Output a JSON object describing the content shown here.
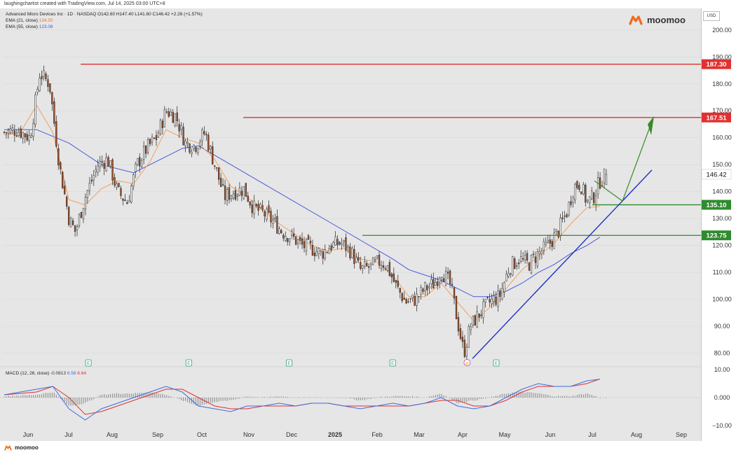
{
  "credit": "laughingchartist created with TradingView.com, Jul 14, 2025 03:00 UTC+8",
  "legend": {
    "title": "Advanced Micro Devices Inc · 1D · NASDAQ O142.60 H147.40 L141.60 C146.42 +2.26 (+1.57%)",
    "ema21": "EMA (21, close)",
    "ema21_value": "134.50",
    "ema55": "EMA (55, close)",
    "ema55_value": "123.06"
  },
  "macd_legend": {
    "label": "MACD (12, 26, close)",
    "v1": "-0.0813",
    "v2": "6.56",
    "v3": "6.64"
  },
  "brand": "moomoo",
  "currency": "USD",
  "colors": {
    "up": "#ffffff",
    "down": "#a0522d",
    "ema21": "#f0a060",
    "ema55": "#4a5ad8",
    "red_level": "#e03030",
    "green_level": "#2e8b2e",
    "trendline": "#2030c8",
    "arrow": "#3a8a2a",
    "macd_line": "#3b6de0",
    "signal_line": "#e03030",
    "hist": "#888888"
  },
  "chart_data": {
    "type": "candlestick",
    "title": "Advanced Micro Devices Inc · 1D · NASDAQ",
    "ohlc_last": {
      "open": 142.6,
      "high": 147.4,
      "low": 141.6,
      "close": 146.42,
      "change": "+2.26",
      "change_pct": "+1.57%"
    },
    "x_ticks": [
      "Jun",
      "Jul",
      "Aug",
      "Sep",
      "Oct",
      "Nov",
      "Dec",
      "2025",
      "Feb",
      "Mar",
      "Apr",
      "May",
      "Jun",
      "Jul",
      "Aug",
      "Sep"
    ],
    "y_ticks": [
      "200.00",
      "190.00",
      "180.00",
      "170.00",
      "160.00",
      "150.00",
      "140.00",
      "130.00",
      "120.00",
      "110.00",
      "100.00",
      "90.00",
      "80.00"
    ],
    "ylim": [
      76,
      208
    ],
    "close_path": [
      [
        0,
        162
      ],
      [
        4,
        163
      ],
      [
        8,
        160
      ],
      [
        11,
        184
      ],
      [
        14,
        180
      ],
      [
        17,
        150
      ],
      [
        20,
        130
      ],
      [
        22,
        125
      ],
      [
        25,
        138
      ],
      [
        29,
        150
      ],
      [
        32,
        152
      ],
      [
        35,
        140
      ],
      [
        38,
        136
      ],
      [
        41,
        150
      ],
      [
        44,
        156
      ],
      [
        47,
        160
      ],
      [
        50,
        170
      ],
      [
        53,
        168
      ],
      [
        56,
        158
      ],
      [
        59,
        157
      ],
      [
        62,
        162
      ],
      [
        65,
        150
      ],
      [
        68,
        138
      ],
      [
        71,
        140
      ],
      [
        74,
        141
      ],
      [
        77,
        134
      ],
      [
        80,
        132
      ],
      [
        83,
        129
      ],
      [
        86,
        125
      ],
      [
        89,
        123
      ],
      [
        92,
        120
      ],
      [
        95,
        119
      ],
      [
        98,
        117
      ],
      [
        101,
        120
      ],
      [
        104,
        121
      ],
      [
        107,
        118
      ],
      [
        110,
        111
      ],
      [
        113,
        112
      ],
      [
        116,
        114
      ],
      [
        118,
        113
      ],
      [
        121,
        105
      ],
      [
        124,
        99
      ],
      [
        127,
        100
      ],
      [
        130,
        104
      ],
      [
        133,
        106
      ],
      [
        135,
        111
      ],
      [
        138,
        105
      ],
      [
        140,
        92
      ],
      [
        142,
        80
      ],
      [
        144,
        90
      ],
      [
        147,
        95
      ],
      [
        150,
        99
      ],
      [
        153,
        101
      ],
      [
        156,
        112
      ],
      [
        159,
        115
      ],
      [
        162,
        113
      ],
      [
        165,
        117
      ],
      [
        168,
        120
      ],
      [
        171,
        125
      ],
      [
        174,
        133
      ],
      [
        176,
        142
      ],
      [
        178,
        143
      ],
      [
        180,
        136
      ],
      [
        182,
        138
      ],
      [
        184,
        144
      ],
      [
        186,
        146.42
      ]
    ],
    "bar_count": 290,
    "ema21": {
      "name": "EMA (21, close)",
      "values": [
        [
          0,
          161
        ],
        [
          5,
          162
        ],
        [
          10,
          172
        ],
        [
          15,
          162
        ],
        [
          20,
          137
        ],
        [
          25,
          135
        ],
        [
          30,
          141
        ],
        [
          35,
          144
        ],
        [
          40,
          143
        ],
        [
          45,
          151
        ],
        [
          50,
          163
        ],
        [
          55,
          160
        ],
        [
          60,
          158
        ],
        [
          65,
          152
        ],
        [
          70,
          142
        ],
        [
          75,
          138
        ],
        [
          80,
          133
        ],
        [
          85,
          128
        ],
        [
          90,
          124
        ],
        [
          95,
          120
        ],
        [
          100,
          118
        ],
        [
          105,
          119
        ],
        [
          110,
          115
        ],
        [
          115,
          114
        ],
        [
          120,
          109
        ],
        [
          125,
          101
        ],
        [
          130,
          101
        ],
        [
          135,
          106
        ],
        [
          140,
          99
        ],
        [
          145,
          92
        ],
        [
          150,
          97
        ],
        [
          155,
          104
        ],
        [
          160,
          111
        ],
        [
          165,
          116
        ],
        [
          170,
          121
        ],
        [
          175,
          128
        ],
        [
          180,
          134
        ],
        [
          184,
          134.5
        ]
      ]
    },
    "ema55": {
      "name": "EMA (55, close)",
      "values": [
        [
          0,
          163
        ],
        [
          10,
          163
        ],
        [
          20,
          158
        ],
        [
          30,
          150
        ],
        [
          40,
          147
        ],
        [
          50,
          153
        ],
        [
          55,
          156
        ],
        [
          60,
          157
        ],
        [
          70,
          150
        ],
        [
          80,
          143
        ],
        [
          90,
          136
        ],
        [
          100,
          129
        ],
        [
          110,
          122
        ],
        [
          120,
          115
        ],
        [
          125,
          111
        ],
        [
          130,
          109
        ],
        [
          135,
          107
        ],
        [
          140,
          104
        ],
        [
          145,
          101
        ],
        [
          150,
          101
        ],
        [
          155,
          103
        ],
        [
          160,
          106
        ],
        [
          165,
          110
        ],
        [
          170,
          113
        ],
        [
          175,
          117
        ],
        [
          180,
          120
        ],
        [
          184,
          123.06
        ]
      ]
    },
    "levels": [
      {
        "value": 187.3,
        "label": "187.30",
        "color": "red"
      },
      {
        "value": 167.51,
        "label": "167.51",
        "color": "red"
      },
      {
        "value": 135.1,
        "label": "135.10",
        "color": "green"
      },
      {
        "value": 123.75,
        "label": "123.75",
        "color": "green"
      }
    ],
    "current_price": "146.42",
    "macd": {
      "label": "MACD (12, 26, close)",
      "y_ticks": [
        "10.00",
        "0.000",
        "−10.00"
      ],
      "ylim": [
        -11,
        11
      ],
      "macd_line": [
        [
          0,
          1
        ],
        [
          10,
          3
        ],
        [
          15,
          4
        ],
        [
          20,
          -4
        ],
        [
          25,
          -8
        ],
        [
          30,
          -4
        ],
        [
          35,
          -2
        ],
        [
          40,
          0
        ],
        [
          45,
          2
        ],
        [
          50,
          4
        ],
        [
          55,
          2
        ],
        [
          60,
          -3
        ],
        [
          65,
          -4
        ],
        [
          70,
          -5
        ],
        [
          75,
          -3
        ],
        [
          80,
          -3
        ],
        [
          85,
          -2
        ],
        [
          90,
          -3
        ],
        [
          95,
          -2
        ],
        [
          100,
          -2
        ],
        [
          105,
          -3
        ],
        [
          110,
          -4
        ],
        [
          115,
          -3
        ],
        [
          120,
          -2
        ],
        [
          125,
          -3
        ],
        [
          130,
          -2
        ],
        [
          135,
          0
        ],
        [
          140,
          -3
        ],
        [
          145,
          -4
        ],
        [
          150,
          -3
        ],
        [
          155,
          0
        ],
        [
          160,
          3
        ],
        [
          165,
          5
        ],
        [
          170,
          4
        ],
        [
          175,
          4
        ],
        [
          180,
          6
        ],
        [
          184,
          6.56
        ]
      ],
      "signal_line": [
        [
          0,
          1
        ],
        [
          10,
          2
        ],
        [
          15,
          4
        ],
        [
          20,
          0
        ],
        [
          25,
          -6
        ],
        [
          30,
          -5
        ],
        [
          35,
          -3
        ],
        [
          40,
          -1
        ],
        [
          45,
          1
        ],
        [
          50,
          3
        ],
        [
          55,
          3
        ],
        [
          60,
          0
        ],
        [
          65,
          -3
        ],
        [
          70,
          -4
        ],
        [
          75,
          -4
        ],
        [
          80,
          -3
        ],
        [
          85,
          -3
        ],
        [
          90,
          -3
        ],
        [
          95,
          -2
        ],
        [
          100,
          -2
        ],
        [
          105,
          -3
        ],
        [
          110,
          -3
        ],
        [
          115,
          -3
        ],
        [
          120,
          -3
        ],
        [
          125,
          -3
        ],
        [
          130,
          -2
        ],
        [
          135,
          -1
        ],
        [
          140,
          -1
        ],
        [
          145,
          -3
        ],
        [
          150,
          -3
        ],
        [
          155,
          -1
        ],
        [
          160,
          2
        ],
        [
          165,
          4
        ],
        [
          170,
          4
        ],
        [
          175,
          4
        ],
        [
          180,
          5
        ],
        [
          184,
          6.64
        ]
      ],
      "hist": [
        [
          0,
          0.5
        ],
        [
          10,
          1
        ],
        [
          15,
          2
        ],
        [
          20,
          -3
        ],
        [
          25,
          -2
        ],
        [
          30,
          1
        ],
        [
          35,
          1.5
        ],
        [
          40,
          1.5
        ],
        [
          45,
          2
        ],
        [
          50,
          1
        ],
        [
          55,
          -1
        ],
        [
          60,
          -3
        ],
        [
          65,
          -1.5
        ],
        [
          70,
          -1
        ],
        [
          75,
          0.5
        ],
        [
          80,
          0
        ],
        [
          85,
          0.5
        ],
        [
          90,
          0
        ],
        [
          95,
          0
        ],
        [
          100,
          0
        ],
        [
          105,
          0
        ],
        [
          110,
          -1
        ],
        [
          115,
          0
        ],
        [
          120,
          0.5
        ],
        [
          125,
          0.5
        ],
        [
          130,
          0
        ],
        [
          135,
          1.5
        ],
        [
          140,
          -2
        ],
        [
          145,
          -1
        ],
        [
          150,
          0
        ],
        [
          155,
          1.5
        ],
        [
          160,
          2
        ],
        [
          165,
          1.5
        ],
        [
          170,
          0.5
        ],
        [
          175,
          0.5
        ],
        [
          180,
          1.5
        ],
        [
          184,
          -0.08
        ]
      ]
    },
    "event_markers": [
      {
        "bar": 26,
        "glyph": "E",
        "kind": "earnings"
      },
      {
        "bar": 57,
        "glyph": "E",
        "kind": "earnings"
      },
      {
        "bar": 88,
        "glyph": "E",
        "kind": "earnings"
      },
      {
        "bar": 120,
        "glyph": "E",
        "kind": "earnings"
      },
      {
        "bar": 143,
        "glyph": "⚡",
        "kind": "split"
      },
      {
        "bar": 152,
        "glyph": "E",
        "kind": "earnings"
      }
    ]
  }
}
